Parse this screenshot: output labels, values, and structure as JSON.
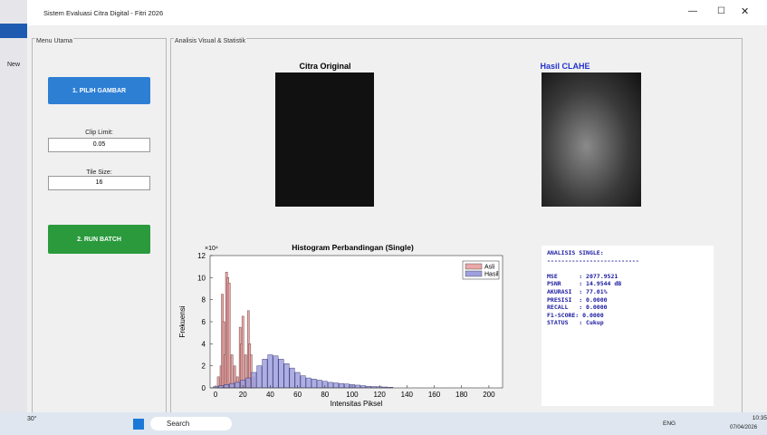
{
  "window": {
    "title": "Sistem Evaluasi Citra Digital - Fitri 2026"
  },
  "side_app": {
    "new_label": "New"
  },
  "menu_panel": {
    "title": "Menu Utama",
    "button_pilih": "1. PILIH GAMBAR",
    "clip_label": "Clip Limit:",
    "clip_value": "0.05",
    "tile_label": "Tile Size:",
    "tile_value": "16",
    "button_batch": "2. RUN BATCH"
  },
  "analysis_panel": {
    "title": "Analisis Visual & Statistik",
    "original_title": "Citra Original",
    "clahe_title": "Hasil CLAHE",
    "report": [
      "ANALISIS SINGLE:",
      "--------------------------",
      "",
      "MSE      : 2077.9521",
      "PSNR     : 14.9544 dB",
      "AKURASI  : 77.01%",
      "PRESISI  : 0.0000",
      "RECALL   : 0.0000",
      "F1-SCORE: 0.0000",
      "STATUS   : Cukup"
    ]
  },
  "chart_data": {
    "type": "bar",
    "title": "Histogram Perbandingan (Single)",
    "x_label": "Intensitas Piksel",
    "y_label": "Frekuensi",
    "y_multiplier": "×10⁴",
    "xlim": [
      -4,
      210
    ],
    "ylim": [
      0,
      12
    ],
    "xticks": [
      0,
      20,
      40,
      60,
      80,
      100,
      120,
      140,
      160,
      180,
      200
    ],
    "yticks": [
      0,
      2,
      4,
      6,
      8,
      10,
      12
    ],
    "legend": "upper right",
    "series": [
      {
        "name": "Asli",
        "color": "#eaa8a8",
        "x": [
          2,
          4,
          5,
          6,
          7,
          8,
          9,
          10,
          12,
          14,
          16,
          18,
          19,
          20,
          22,
          24,
          25,
          26,
          28
        ],
        "values": [
          1,
          2,
          8.5,
          6,
          3,
          10.5,
          10,
          9.5,
          3,
          2,
          1,
          5.5,
          4,
          6.5,
          3,
          7,
          4,
          3,
          1
        ]
      },
      {
        "name": "Hasil",
        "color": "#9fa0e0",
        "x": [
          0,
          4,
          8,
          12,
          16,
          20,
          24,
          28,
          32,
          36,
          40,
          44,
          48,
          52,
          56,
          60,
          64,
          68,
          72,
          76,
          80,
          84,
          88,
          92,
          96,
          100,
          104,
          108,
          112,
          116,
          120,
          124,
          128
        ],
        "values": [
          0.1,
          0.2,
          0.3,
          0.4,
          0.5,
          0.7,
          0.9,
          1.4,
          2.0,
          2.6,
          3.0,
          2.9,
          2.6,
          2.2,
          1.8,
          1.4,
          1.1,
          0.9,
          0.8,
          0.7,
          0.6,
          0.5,
          0.45,
          0.4,
          0.35,
          0.3,
          0.25,
          0.2,
          0.15,
          0.12,
          0.1,
          0.08,
          0.05
        ]
      }
    ]
  },
  "taskbar": {
    "weather": "30°",
    "search": "Search",
    "lang": "ENG",
    "time": "10:35",
    "date": "07/04/2026"
  }
}
